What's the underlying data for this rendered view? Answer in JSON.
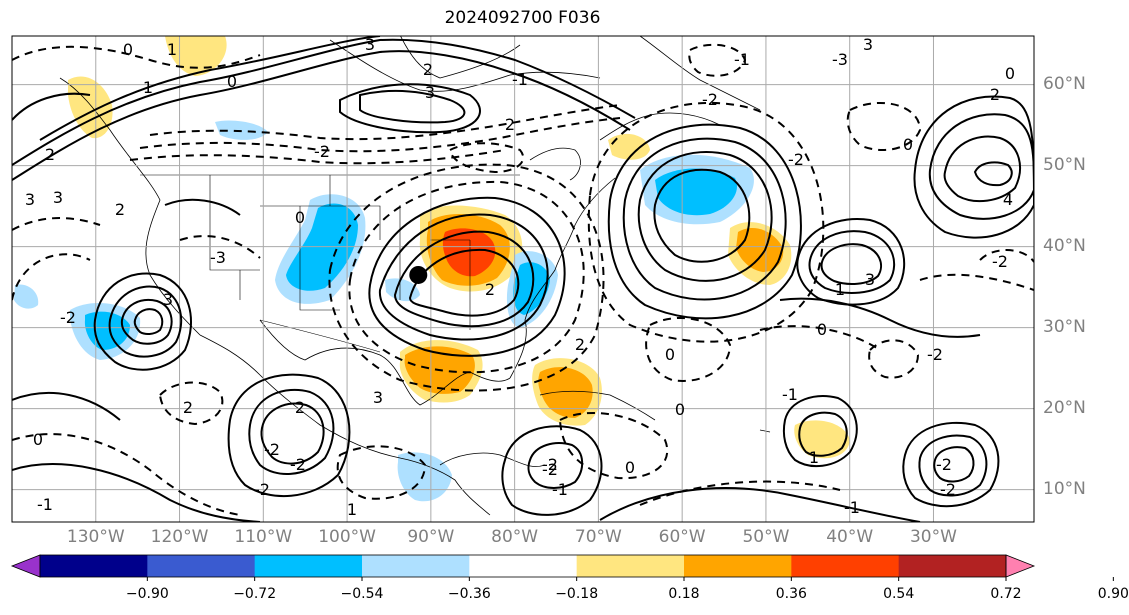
{
  "title": "2024092700 F036",
  "map": {
    "projection": "equirectangular",
    "lon_range": [
      -140,
      -18
    ],
    "lat_range": [
      6,
      66
    ],
    "lon_ticks": [
      "130°W",
      "120°W",
      "110°W",
      "100°W",
      "90°W",
      "80°W",
      "70°W",
      "60°W",
      "50°W",
      "40°W",
      "30°W"
    ],
    "lat_ticks": [
      "10°N",
      "20°N",
      "30°N",
      "40°N",
      "50°N",
      "60°N"
    ],
    "grid": true,
    "marker": {
      "name": "storm center",
      "lon": -91.5,
      "lat": 36.5
    }
  },
  "colorbar": {
    "ticks": [
      "−0.90",
      "−0.72",
      "−0.54",
      "−0.36",
      "−0.18",
      "0.18",
      "0.36",
      "0.54",
      "0.72",
      "0.90"
    ],
    "colors": [
      "#9932cc",
      "#00008b",
      "#3a5bd0",
      "#00bfff",
      "#aee0ff",
      "#ffffff",
      "#ffe680",
      "#ffa500",
      "#ff4000",
      "#b22222",
      "#ff80b0"
    ]
  },
  "contour_labels": {
    "values": [
      "0",
      "1",
      "3",
      "0",
      "2",
      "3",
      "1",
      "2",
      "3",
      "-2",
      "3",
      "2",
      "0",
      "-3",
      "-2",
      "3",
      "2",
      "2",
      "-2",
      "-2",
      "-2",
      "0",
      "3",
      "2",
      "-1",
      "1",
      "-2",
      "-2",
      "-2",
      "0",
      "3",
      "3",
      "1",
      "0",
      "-1",
      "-2",
      "-2",
      "4",
      "-3",
      "-2",
      "-2",
      "-1",
      "0",
      "1",
      "0",
      "-1",
      "2",
      "-2",
      "-1",
      "2",
      "2",
      "0",
      "0",
      "-1"
    ],
    "legend_note": ""
  }
}
